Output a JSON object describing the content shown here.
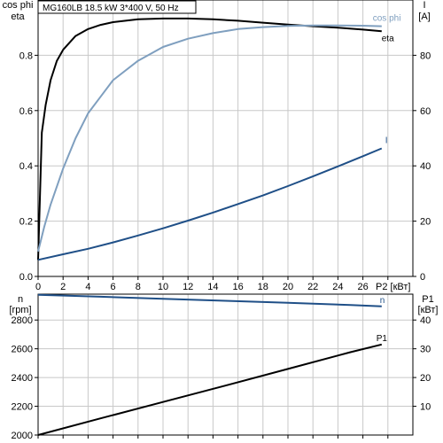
{
  "header": {
    "motor_info": "MG160LB   18.5 kW   3*400 V, 50 Hz"
  },
  "colors": {
    "eta": "#000000",
    "cos_phi": "#7f9fbf",
    "current": "#1f4f87",
    "speed": "#1f4f87",
    "p1": "#000000",
    "grid": "#c8c8c8",
    "frame": "#000000"
  },
  "chart_data": [
    {
      "type": "line",
      "x_label": "P2 [кВт]",
      "x_ticks": [
        "0",
        "2",
        "4",
        "6",
        "8",
        "10",
        "12",
        "14",
        "16",
        "18",
        "20",
        "22",
        "24",
        "26"
      ],
      "xlim": [
        0,
        30
      ],
      "left_axis": {
        "label_line1": "cos phi",
        "label_line2": "eta",
        "ylim": [
          0,
          1.0
        ],
        "ticks": [
          "0.0",
          "0.2",
          "0.4",
          "0.6",
          "0.8"
        ]
      },
      "right_axis": {
        "label_line1": "I",
        "label_line2": "[A]",
        "ylim": [
          0,
          100
        ],
        "ticks": [
          "0",
          "20",
          "40",
          "60",
          "80"
        ]
      },
      "grid": true,
      "series": [
        {
          "name": "eta",
          "axis": "left",
          "x": [
            0,
            0.3,
            0.6,
            1,
            1.5,
            2,
            3,
            4,
            5,
            6,
            8,
            10,
            12,
            14,
            16,
            18,
            20,
            22,
            24,
            26,
            27.5
          ],
          "values": [
            0.06,
            0.52,
            0.62,
            0.71,
            0.78,
            0.82,
            0.87,
            0.895,
            0.91,
            0.92,
            0.93,
            0.933,
            0.933,
            0.93,
            0.925,
            0.918,
            0.911,
            0.905,
            0.9,
            0.893,
            0.887
          ]
        },
        {
          "name": "cos phi",
          "axis": "left",
          "x": [
            0,
            0.5,
            1,
            2,
            3,
            4,
            5,
            6,
            8,
            10,
            12,
            14,
            16,
            18,
            20,
            22,
            24,
            26,
            27.5
          ],
          "values": [
            0.09,
            0.18,
            0.26,
            0.39,
            0.5,
            0.59,
            0.65,
            0.71,
            0.78,
            0.83,
            0.86,
            0.88,
            0.895,
            0.902,
            0.906,
            0.908,
            0.908,
            0.907,
            0.905
          ]
        },
        {
          "name": "I",
          "axis": "right",
          "x": [
            0,
            2,
            4,
            6,
            8,
            10,
            12,
            14,
            16,
            18,
            20,
            22,
            24,
            26,
            27.5
          ],
          "values": [
            6,
            8,
            10,
            12.3,
            14.8,
            17.4,
            20.2,
            23.1,
            26.2,
            29.3,
            32.7,
            36.2,
            39.8,
            43.5,
            46.3
          ]
        }
      ]
    },
    {
      "type": "line",
      "x_label": "",
      "xlim": [
        0,
        30
      ],
      "left_axis": {
        "label_line1": "n",
        "label_line2": "[rpm]",
        "ylim": [
          2000,
          2980
        ],
        "ticks": [
          "2000",
          "2200",
          "2400",
          "2600",
          "2800"
        ]
      },
      "right_axis": {
        "label_line1": "P1",
        "label_line2": "[кВт]",
        "ylim": [
          0,
          49
        ],
        "ticks": [
          "10",
          "20",
          "30",
          "40"
        ]
      },
      "grid": true,
      "series": [
        {
          "name": "n",
          "axis": "left",
          "x": [
            0,
            5,
            10,
            15,
            20,
            25,
            27.5
          ],
          "values": [
            2975,
            2962,
            2948,
            2934,
            2920,
            2904,
            2895
          ]
        },
        {
          "name": "P1",
          "axis": "right",
          "x": [
            0,
            5,
            10,
            15,
            20,
            25,
            27.5
          ],
          "values": [
            0,
            5.8,
            11.5,
            17.2,
            23.0,
            28.8,
            31.5
          ]
        }
      ]
    }
  ]
}
